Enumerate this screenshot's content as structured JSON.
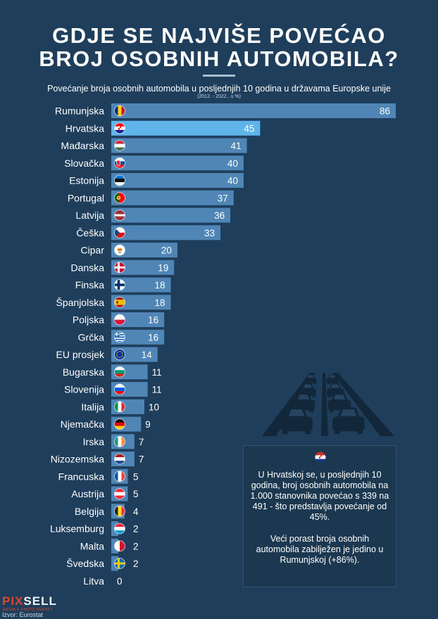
{
  "header": {
    "title_line1": "GDJE SE NAJVIŠE POVEĆAO",
    "title_line2": "BROJ OSOBNIH AUTOMOBILA?",
    "subtitle": "Povećanje broja osobnih automobila u posljednjih 10 godina u državama Europske unije",
    "subnote": "(2012. - 2022., u %)"
  },
  "chart_data": {
    "type": "bar",
    "orientation": "horizontal",
    "categories": [
      "Rumunjska",
      "Hrvatska",
      "Mađarska",
      "Slovačka",
      "Estonija",
      "Portugal",
      "Latvija",
      "Češka",
      "Cipar",
      "Danska",
      "Finska",
      "Španjolska",
      "Poljska",
      "Grčka",
      "EU prosjek",
      "Bugarska",
      "Slovenija",
      "Italija",
      "Njemačka",
      "Irska",
      "Nizozemska",
      "Francuska",
      "Austrija",
      "Belgija",
      "Luksemburg",
      "Malta",
      "Švedska",
      "Litva"
    ],
    "values": [
      86,
      45,
      41,
      40,
      40,
      37,
      36,
      33,
      20,
      19,
      18,
      18,
      16,
      16,
      14,
      11,
      11,
      10,
      9,
      7,
      7,
      5,
      5,
      4,
      2,
      2,
      2,
      0
    ],
    "value_labels": [
      "86",
      "45",
      "41",
      "40",
      "40",
      "37",
      "36",
      "33",
      "20",
      "19",
      "18",
      "18",
      "16",
      "16",
      "14",
      "11",
      "11",
      "10",
      "9",
      "7",
      "7",
      "5",
      "5",
      "4",
      "2",
      "2",
      "2",
      "0"
    ],
    "flags": [
      "ro",
      "hr",
      "hu",
      "sk",
      "ee",
      "pt",
      "lv",
      "cz",
      "cy",
      "dk",
      "fi",
      "es",
      "pl",
      "gr",
      "eu",
      "bg",
      "si",
      "it",
      "de",
      "ie",
      "nl",
      "fr",
      "at",
      "be",
      "lu",
      "mt",
      "se",
      "lt"
    ],
    "highlight": "Hrvatska",
    "title": "GDJE SE NAJVIŠE POVEĆAO BROJ OSOBNIH AUTOMOBILA?",
    "xlim": [
      0,
      86
    ],
    "grid": false,
    "colors": {
      "bar": "#4f86b6",
      "highlight_bar": "#5fb4ea",
      "background": "#1f3e5c"
    }
  },
  "info_box": {
    "flag": "hr",
    "paragraph1": "U Hrvatskoj se, u posljednjih 10 godina, broj osobnih automobila na 1.000 stanovnika povećao s 339 na 491 - što predstavlja povećanje od 45%.",
    "paragraph2": "Veći porast broja osobnih automobila zabilježen je jedino u Rumunjskoj (+86%)."
  },
  "footer": {
    "logo_part1": "PIX",
    "logo_part2": "SELL",
    "logo_tagline": "MEDIA & PHOTO AGENCY",
    "source": "Izvor: Eurostat"
  }
}
